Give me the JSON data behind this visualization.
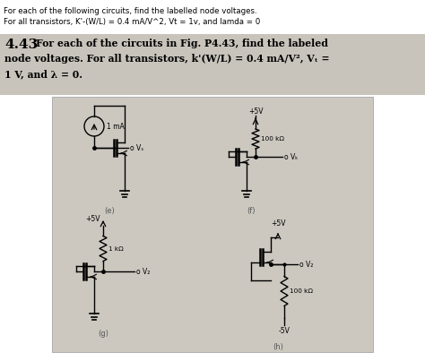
{
  "header_line1": "For each of the following circuits, find the labelled node voltages.",
  "header_line2": "For all transistors, K'-(W/L) = 0.4 mA/V^2, Vt = 1v, and lamda = 0",
  "problem_num": "4.43",
  "problem_text1": "For each of the circuits in Fig. P4.43, find the labeled",
  "problem_text2": "node voltages. For all transistors, k'(W/L) = 0.4 mA/V², Vₜ =",
  "problem_text3": "1 V, and λ = 0.",
  "bg_white": "#ffffff",
  "bg_gray_box": "#c8c4bc",
  "bg_circuit": "#ccc8c0",
  "label_e": "(e)",
  "label_f": "(f)",
  "label_g": "(g)",
  "label_h": "(h)",
  "plus5v": "+5V",
  "minus5v": "-5V",
  "r100k": "100 kΩ",
  "r1k": "1 kΩ",
  "i1ma": "1 mA"
}
